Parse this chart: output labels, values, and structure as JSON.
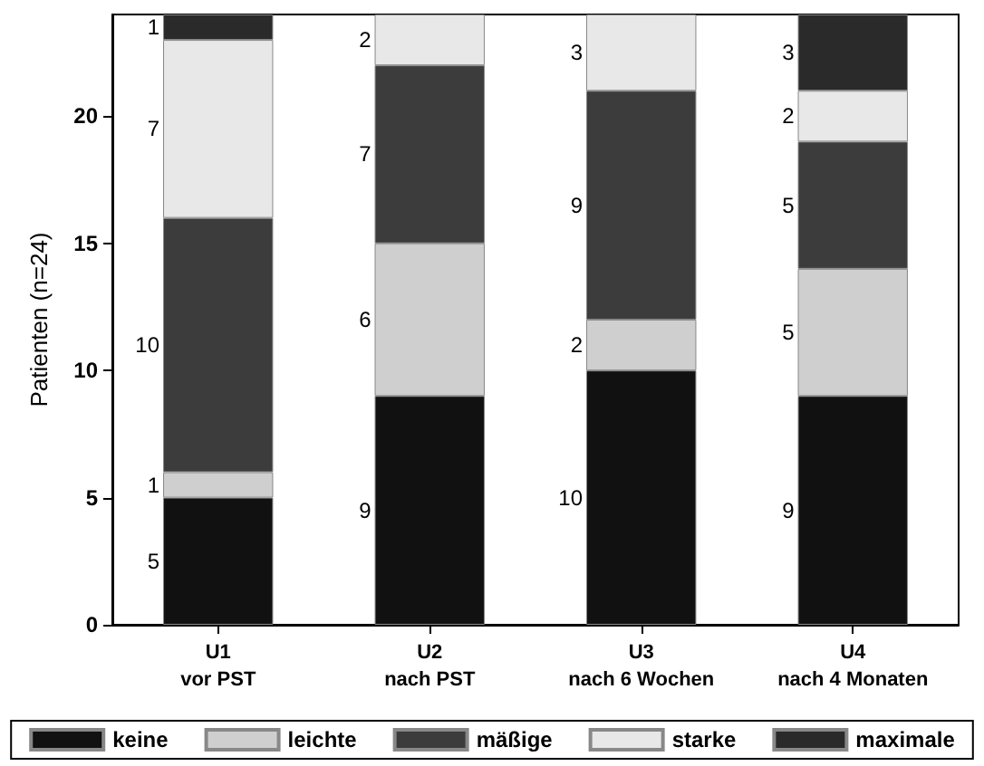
{
  "chart_data": {
    "type": "bar",
    "stacked": true,
    "ylabel": "Patienten (n=24)",
    "categories": [
      "U1\nvor PST",
      "U2\nnach PST",
      "U3\nnach 6 Wochen",
      "U4\nnach 4 Monaten"
    ],
    "series": [
      {
        "name": "keine",
        "color": "#111111",
        "values": [
          5,
          9,
          10,
          9
        ]
      },
      {
        "name": "leichte",
        "color": "#cfcfcf",
        "values": [
          1,
          6,
          2,
          5
        ]
      },
      {
        "name": "mäßige",
        "color": "#3c3c3c",
        "values": [
          10,
          7,
          9,
          5
        ]
      },
      {
        "name": "starke",
        "color": "#e8e8e8",
        "values": [
          7,
          2,
          3,
          2
        ]
      },
      {
        "name": "maximale",
        "color": "#2a2a2a",
        "values": [
          1,
          null,
          null,
          3
        ]
      }
    ],
    "ylim": [
      0,
      24
    ],
    "yticks": [
      0,
      5,
      10,
      15,
      20
    ],
    "data_labels": true,
    "grid": false,
    "legend": "bottom"
  }
}
